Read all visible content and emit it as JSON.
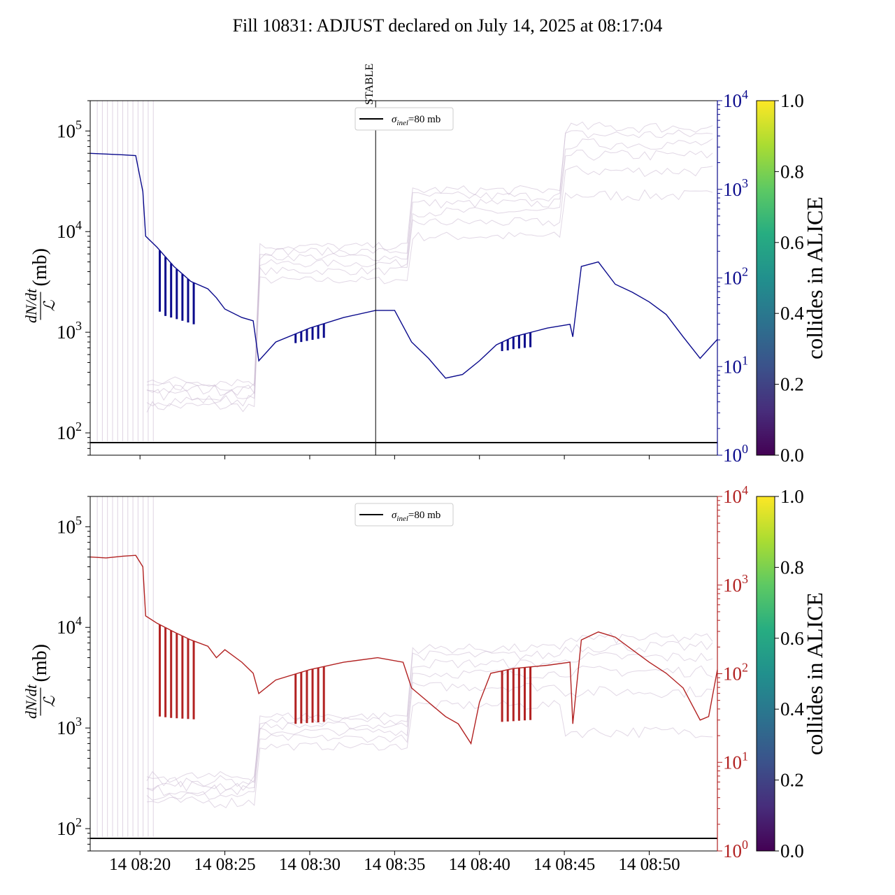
{
  "title": "Fill 10831: ADJUST declared on July 14, 2025 at 08:17:04",
  "colors": {
    "top_series": "#0a0a8c",
    "bottom_series": "#b22222",
    "background_bunches": "#c9b6cf",
    "sigma_line": "#000000"
  },
  "chart_data": [
    {
      "type": "line",
      "panel": "top",
      "ylabel_numerator": "dN/dt",
      "ylabel_denominator": "ℒ",
      "ylabel_unit": "(mb)",
      "yscale": "log",
      "ylim": [
        60,
        200000
      ],
      "yticks": [
        {
          "base": "10",
          "exp": "2",
          "value": 100
        },
        {
          "base": "10",
          "exp": "3",
          "value": 1000
        },
        {
          "base": "10",
          "exp": "4",
          "value": 10000
        },
        {
          "base": "10",
          "exp": "5",
          "value": 100000
        }
      ],
      "right_axis": {
        "scale": "log",
        "ylim": [
          1,
          10000
        ],
        "color": "#0a0a8c",
        "ticks": [
          {
            "base": "10",
            "exp": "0",
            "value": 1
          },
          {
            "base": "10",
            "exp": "1",
            "value": 10
          },
          {
            "base": "10",
            "exp": "2",
            "value": 100
          },
          {
            "base": "10",
            "exp": "3",
            "value": 1000
          },
          {
            "base": "10",
            "exp": "4",
            "value": 10000
          }
        ]
      },
      "xlim": [
        "08:17:04",
        "08:54:01"
      ],
      "legend": {
        "label_prefix": "σ",
        "label_sub": "inel",
        "label_suffix": "=80 mb",
        "position": "upper-center"
      },
      "sigma_inel_mb": 80,
      "stable_marker": {
        "label": "STABLE",
        "time": "08:33:53"
      },
      "series": [
        {
          "color": "#0a0a8c",
          "points": [
            [
              "08:17:04",
              60000
            ],
            [
              "08:18:00",
              59000
            ],
            [
              "08:19:00",
              58000
            ],
            [
              "08:19:45",
              57000
            ],
            [
              "08:20:10",
              25000
            ],
            [
              "08:20:20",
              9000
            ],
            [
              "08:21:00",
              7000
            ],
            [
              "08:22:00",
              4500
            ],
            [
              "08:23:00",
              3200
            ],
            [
              "08:24:00",
              2700
            ],
            [
              "08:24:30",
              2200
            ],
            [
              "08:25:00",
              1700
            ],
            [
              "08:26:00",
              1400
            ],
            [
              "08:26:40",
              1300
            ],
            [
              "08:27:00",
              520
            ],
            [
              "08:28:00",
              800
            ],
            [
              "08:30:00",
              1100
            ],
            [
              "08:32:00",
              1400
            ],
            [
              "08:33:53",
              1650
            ],
            [
              "08:35:00",
              1650
            ],
            [
              "08:36:00",
              800
            ],
            [
              "08:37:00",
              550
            ],
            [
              "08:38:00",
              350
            ],
            [
              "08:39:00",
              380
            ],
            [
              "08:40:00",
              520
            ],
            [
              "08:41:00",
              750
            ],
            [
              "08:42:00",
              900
            ],
            [
              "08:44:00",
              1100
            ],
            [
              "08:45:20",
              1200
            ],
            [
              "08:45:30",
              900
            ],
            [
              "08:46:00",
              4500
            ],
            [
              "08:47:00",
              5000
            ],
            [
              "08:48:00",
              3000
            ],
            [
              "08:49:00",
              2500
            ],
            [
              "08:50:00",
              2000
            ],
            [
              "08:51:00",
              1500
            ],
            [
              "08:52:00",
              900
            ],
            [
              "08:53:00",
              550
            ],
            [
              "08:54:01",
              850
            ]
          ],
          "dips": [
            {
              "time": "08:21:10",
              "to": 1600
            },
            {
              "time": "08:21:30",
              "to": 1450
            },
            {
              "time": "08:21:50",
              "to": 1400
            },
            {
              "time": "08:22:10",
              "to": 1350
            },
            {
              "time": "08:22:30",
              "to": 1300
            },
            {
              "time": "08:22:50",
              "to": 1250
            },
            {
              "time": "08:23:10",
              "to": 1200
            },
            {
              "time": "08:29:10",
              "to": 780
            },
            {
              "time": "08:29:30",
              "to": 800
            },
            {
              "time": "08:29:50",
              "to": 820
            },
            {
              "time": "08:30:10",
              "to": 840
            },
            {
              "time": "08:30:30",
              "to": 860
            },
            {
              "time": "08:30:50",
              "to": 880
            },
            {
              "time": "08:41:20",
              "to": 650
            },
            {
              "time": "08:41:40",
              "to": 660
            },
            {
              "time": "08:42:00",
              "to": 680
            },
            {
              "time": "08:42:20",
              "to": 690
            },
            {
              "time": "08:42:40",
              "to": 700
            },
            {
              "time": "08:43:00",
              "to": 710
            }
          ]
        }
      ]
    },
    {
      "type": "line",
      "panel": "bottom",
      "ylabel_numerator": "dN/dt",
      "ylabel_denominator": "ℒ",
      "ylabel_unit": "(mb)",
      "yscale": "log",
      "ylim": [
        60,
        200000
      ],
      "yticks": [
        {
          "base": "10",
          "exp": "2",
          "value": 100
        },
        {
          "base": "10",
          "exp": "3",
          "value": 1000
        },
        {
          "base": "10",
          "exp": "4",
          "value": 10000
        },
        {
          "base": "10",
          "exp": "5",
          "value": 100000
        }
      ],
      "right_axis": {
        "scale": "log",
        "ylim": [
          1,
          10000
        ],
        "color": "#b22222",
        "ticks": [
          {
            "base": "10",
            "exp": "0",
            "value": 1
          },
          {
            "base": "10",
            "exp": "1",
            "value": 10
          },
          {
            "base": "10",
            "exp": "2",
            "value": 100
          },
          {
            "base": "10",
            "exp": "3",
            "value": 1000
          },
          {
            "base": "10",
            "exp": "4",
            "value": 10000
          }
        ]
      },
      "xlim": [
        "08:17:04",
        "08:54:01"
      ],
      "xticks": [
        "14 08:20",
        "14 08:25",
        "14 08:30",
        "14 08:35",
        "14 08:40",
        "14 08:45",
        "14 08:50"
      ],
      "legend": {
        "label_prefix": "σ",
        "label_sub": "inel",
        "label_suffix": "=80 mb",
        "position": "upper-center"
      },
      "sigma_inel_mb": 80,
      "series": [
        {
          "color": "#b22222",
          "points": [
            [
              "08:17:04",
              50000
            ],
            [
              "08:18:00",
              49000
            ],
            [
              "08:19:00",
              51000
            ],
            [
              "08:19:45",
              52000
            ],
            [
              "08:20:10",
              40000
            ],
            [
              "08:20:20",
              13000
            ],
            [
              "08:21:00",
              11000
            ],
            [
              "08:22:00",
              9000
            ],
            [
              "08:23:00",
              7500
            ],
            [
              "08:24:00",
              6500
            ],
            [
              "08:24:30",
              5000
            ],
            [
              "08:25:00",
              6000
            ],
            [
              "08:26:00",
              4500
            ],
            [
              "08:26:40",
              3500
            ],
            [
              "08:27:00",
              2200
            ],
            [
              "08:28:00",
              3000
            ],
            [
              "08:30:00",
              3800
            ],
            [
              "08:32:00",
              4500
            ],
            [
              "08:34:00",
              5000
            ],
            [
              "08:35:30",
              4500
            ],
            [
              "08:36:00",
              2500
            ],
            [
              "08:37:00",
              1800
            ],
            [
              "08:38:00",
              1300
            ],
            [
              "08:38:45",
              1100
            ],
            [
              "08:39:30",
              700
            ],
            [
              "08:40:00",
              1800
            ],
            [
              "08:40:40",
              3500
            ],
            [
              "08:42:00",
              3900
            ],
            [
              "08:44:00",
              4200
            ],
            [
              "08:45:20",
              4500
            ],
            [
              "08:45:30",
              1100
            ],
            [
              "08:46:00",
              7500
            ],
            [
              "08:47:00",
              9000
            ],
            [
              "08:48:00",
              8000
            ],
            [
              "08:49:00",
              6000
            ],
            [
              "08:50:00",
              4500
            ],
            [
              "08:51:00",
              3500
            ],
            [
              "08:52:00",
              2500
            ],
            [
              "08:53:00",
              1200
            ],
            [
              "08:53:30",
              1300
            ],
            [
              "08:54:01",
              3800
            ]
          ],
          "dips": [
            {
              "time": "08:21:10",
              "to": 1300
            },
            {
              "time": "08:21:30",
              "to": 1280
            },
            {
              "time": "08:21:50",
              "to": 1260
            },
            {
              "time": "08:22:10",
              "to": 1250
            },
            {
              "time": "08:22:30",
              "to": 1240
            },
            {
              "time": "08:22:50",
              "to": 1230
            },
            {
              "time": "08:23:10",
              "to": 1220
            },
            {
              "time": "08:29:10",
              "to": 1100
            },
            {
              "time": "08:29:30",
              "to": 1110
            },
            {
              "time": "08:29:50",
              "to": 1120
            },
            {
              "time": "08:30:10",
              "to": 1130
            },
            {
              "time": "08:30:30",
              "to": 1140
            },
            {
              "time": "08:30:50",
              "to": 1150
            },
            {
              "time": "08:41:20",
              "to": 1150
            },
            {
              "time": "08:41:40",
              "to": 1160
            },
            {
              "time": "08:42:00",
              "to": 1170
            },
            {
              "time": "08:42:20",
              "to": 1180
            },
            {
              "time": "08:42:40",
              "to": 1190
            },
            {
              "time": "08:43:00",
              "to": 1200
            }
          ]
        }
      ]
    }
  ],
  "colorbar": {
    "label": "collides in ALICE",
    "ticks": [
      "0.0",
      "0.2",
      "0.4",
      "0.6",
      "0.8",
      "1.0"
    ],
    "colormap_stops": [
      "#440154",
      "#3b528b",
      "#21908d",
      "#5dc963",
      "#fde725"
    ]
  }
}
